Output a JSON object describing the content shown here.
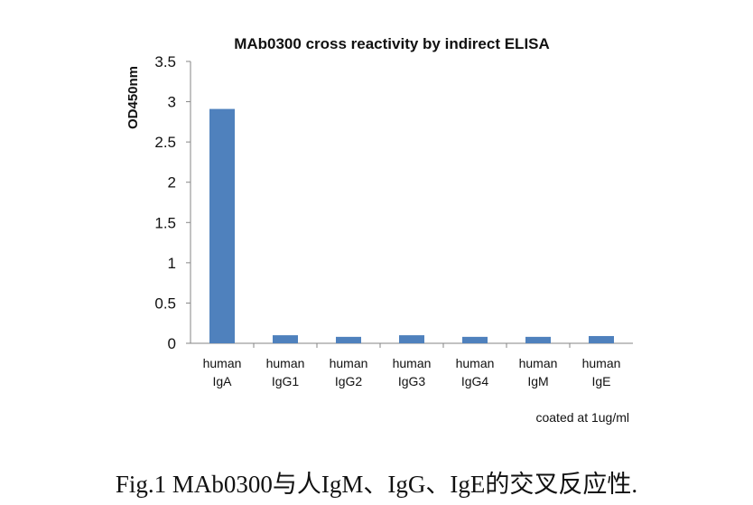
{
  "chart_data": {
    "type": "bar",
    "title": "MAb0300 cross reactivity by indirect ELISA",
    "ylabel": "OD450nm",
    "xlabel": "",
    "ylim": [
      0,
      3.5
    ],
    "yticks": [
      0,
      0.5,
      1,
      1.5,
      2,
      2.5,
      3,
      3.5
    ],
    "categories": [
      [
        "human",
        "IgA"
      ],
      [
        "human",
        "IgG1"
      ],
      [
        "human",
        "IgG2"
      ],
      [
        "human",
        "IgG3"
      ],
      [
        "human",
        "IgG4"
      ],
      [
        "human",
        "IgM"
      ],
      [
        "human",
        "IgE"
      ]
    ],
    "values": [
      2.91,
      0.1,
      0.08,
      0.1,
      0.08,
      0.08,
      0.09
    ],
    "bar_color": "#4f81bd",
    "annotation": "coated at 1ug/ml"
  },
  "caption": "Fig.1 MAb0300与人IgM、IgG、IgE的交叉反应性."
}
